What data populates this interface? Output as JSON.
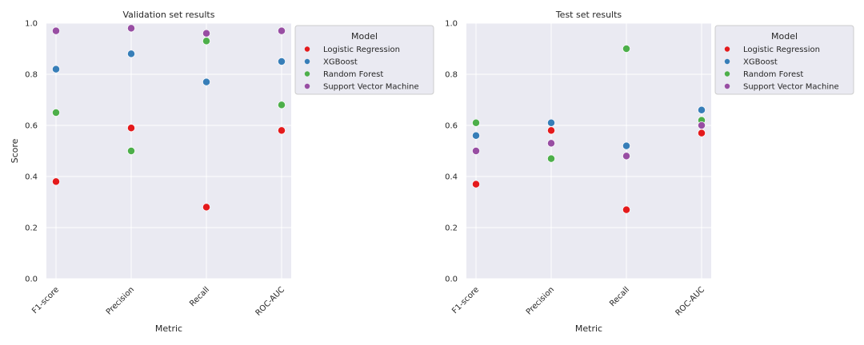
{
  "chart_data": [
    {
      "type": "scatter",
      "title": "Validation set results",
      "xlabel": "Metric",
      "ylabel": "Score",
      "ylim": [
        0.0,
        1.0
      ],
      "yticks": [
        "0.0",
        "0.2",
        "0.4",
        "0.6",
        "0.8",
        "1.0"
      ],
      "categories": [
        "F1-score",
        "Precision",
        "Recall",
        "ROC-AUC"
      ],
      "grid": true,
      "legend_title": "Model",
      "legend_position": "outside-upper-right",
      "series": [
        {
          "name": "Logistic Regression",
          "color": "#e41a1c",
          "values": [
            0.38,
            0.59,
            0.28,
            0.58
          ]
        },
        {
          "name": "XGBoost",
          "color": "#377eb8",
          "values": [
            0.82,
            0.88,
            0.77,
            0.85
          ]
        },
        {
          "name": "Random Forest",
          "color": "#4daf4a",
          "values": [
            0.65,
            0.5,
            0.93,
            0.68
          ]
        },
        {
          "name": "Support Vector Machine",
          "color": "#984ea3",
          "values": [
            0.97,
            0.98,
            0.96,
            0.97
          ]
        }
      ]
    },
    {
      "type": "scatter",
      "title": "Test set results",
      "xlabel": "Metric",
      "ylabel": "",
      "ylim": [
        0.0,
        1.0
      ],
      "yticks": [
        "0.0",
        "0.2",
        "0.4",
        "0.6",
        "0.8",
        "1.0"
      ],
      "categories": [
        "F1-score",
        "Precision",
        "Recall",
        "ROC-AUC"
      ],
      "grid": true,
      "legend_title": "Model",
      "legend_position": "outside-upper-right",
      "series": [
        {
          "name": "Logistic Regression",
          "color": "#e41a1c",
          "values": [
            0.37,
            0.58,
            0.27,
            0.57
          ]
        },
        {
          "name": "XGBoost",
          "color": "#377eb8",
          "values": [
            0.56,
            0.61,
            0.52,
            0.66
          ]
        },
        {
          "name": "Random Forest",
          "color": "#4daf4a",
          "values": [
            0.61,
            0.47,
            0.9,
            0.62
          ]
        },
        {
          "name": "Support Vector Machine",
          "color": "#984ea3",
          "values": [
            0.5,
            0.53,
            0.48,
            0.6
          ]
        }
      ]
    }
  ]
}
